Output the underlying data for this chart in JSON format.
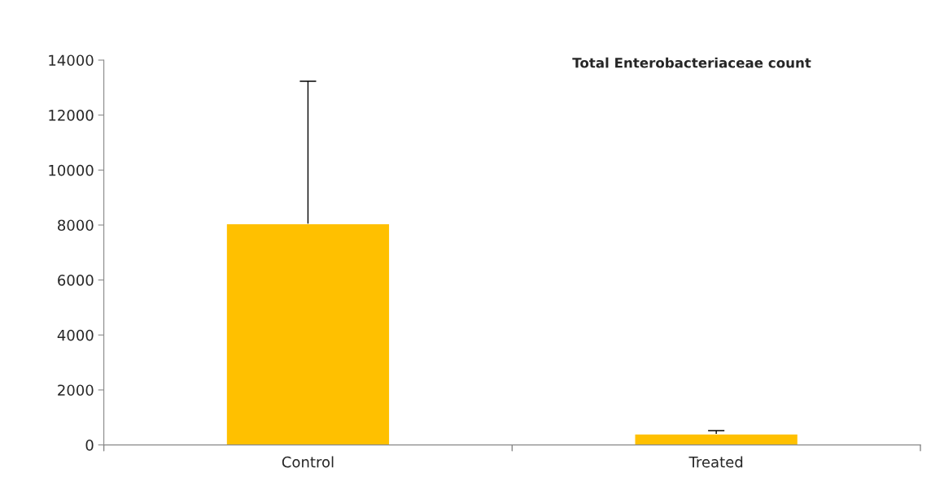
{
  "chart_data": {
    "type": "bar",
    "title": "Total Enterobacteriaceae count",
    "categories": [
      "Control",
      "Treated"
    ],
    "values": [
      8050,
      400
    ],
    "errors": [
      [
        8050,
        13230
      ],
      [
        400,
        520
      ]
    ],
    "color": "#ffc000",
    "ylim": [
      0,
      14000
    ],
    "yticks": [
      0,
      2000,
      4000,
      6000,
      8000,
      10000,
      12000,
      14000
    ],
    "grid": false,
    "legend": false
  }
}
